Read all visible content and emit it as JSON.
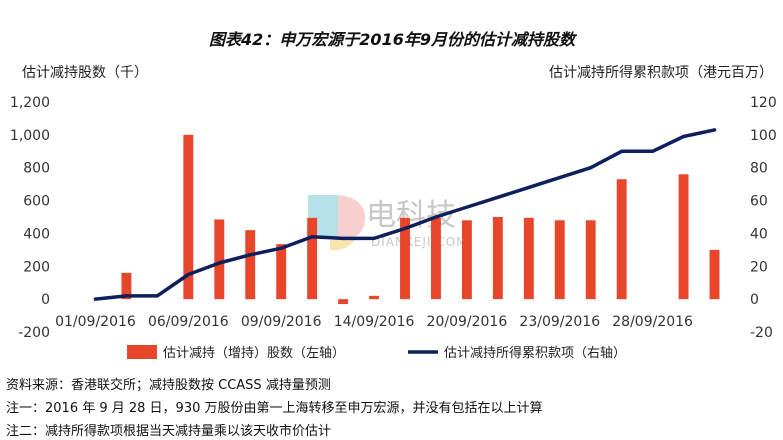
{
  "chart_data": {
    "type": "bar+line",
    "title": "图表42：申万宏源于2016年9月份的估计减持股数",
    "left_axis_label": "估计减持股数（千）",
    "right_axis_label": "估计减持所得累积款项（港元百万）",
    "left_ticks": [
      "1,200",
      "1,000",
      "800",
      "600",
      "400",
      "200",
      "0",
      "-200"
    ],
    "right_ticks": [
      "120",
      "100",
      "80",
      "60",
      "40",
      "20",
      "0",
      "-20"
    ],
    "ylim_left": [
      -200,
      1200
    ],
    "ylim_right": [
      -20,
      120
    ],
    "x_tick_labels": [
      "01/09/2016",
      "06/09/2016",
      "09/09/2016",
      "14/09/2016",
      "20/09/2016",
      "23/09/2016",
      "28/09/2016"
    ],
    "x_tick_positions": [
      1,
      4,
      7,
      10,
      13,
      16,
      19
    ],
    "num_points": 21,
    "series": [
      {
        "name": "估计减持（增持）股数（左轴）",
        "type": "bar",
        "axis": "left",
        "color": "#E8462A",
        "values": [
          0,
          160,
          0,
          1000,
          485,
          420,
          335,
          495,
          -30,
          20,
          495,
          495,
          480,
          500,
          495,
          480,
          480,
          730,
          0,
          760,
          300
        ]
      },
      {
        "name": "估计减持所得累积款项（右轴）",
        "type": "line",
        "axis": "right",
        "color": "#0D1F5C",
        "values": [
          0,
          2,
          2,
          15,
          22,
          27,
          31,
          38,
          37,
          37,
          43,
          50,
          56,
          62,
          68,
          74,
          80,
          90,
          90,
          99,
          103
        ]
      }
    ]
  },
  "watermark": {
    "brand": "电科技",
    "domain": "DIANKEJI.COM"
  },
  "notes": [
    "资料来源：香港联交所；减持股数按 CCASS 减持量预测",
    "注一：2016 年 9 月 28 日，930 万股份由第一上海转移至申万宏源，并没有包括在以上计算",
    "注二：减持所得款项根据当天减持量乘以该天收市价估计"
  ]
}
